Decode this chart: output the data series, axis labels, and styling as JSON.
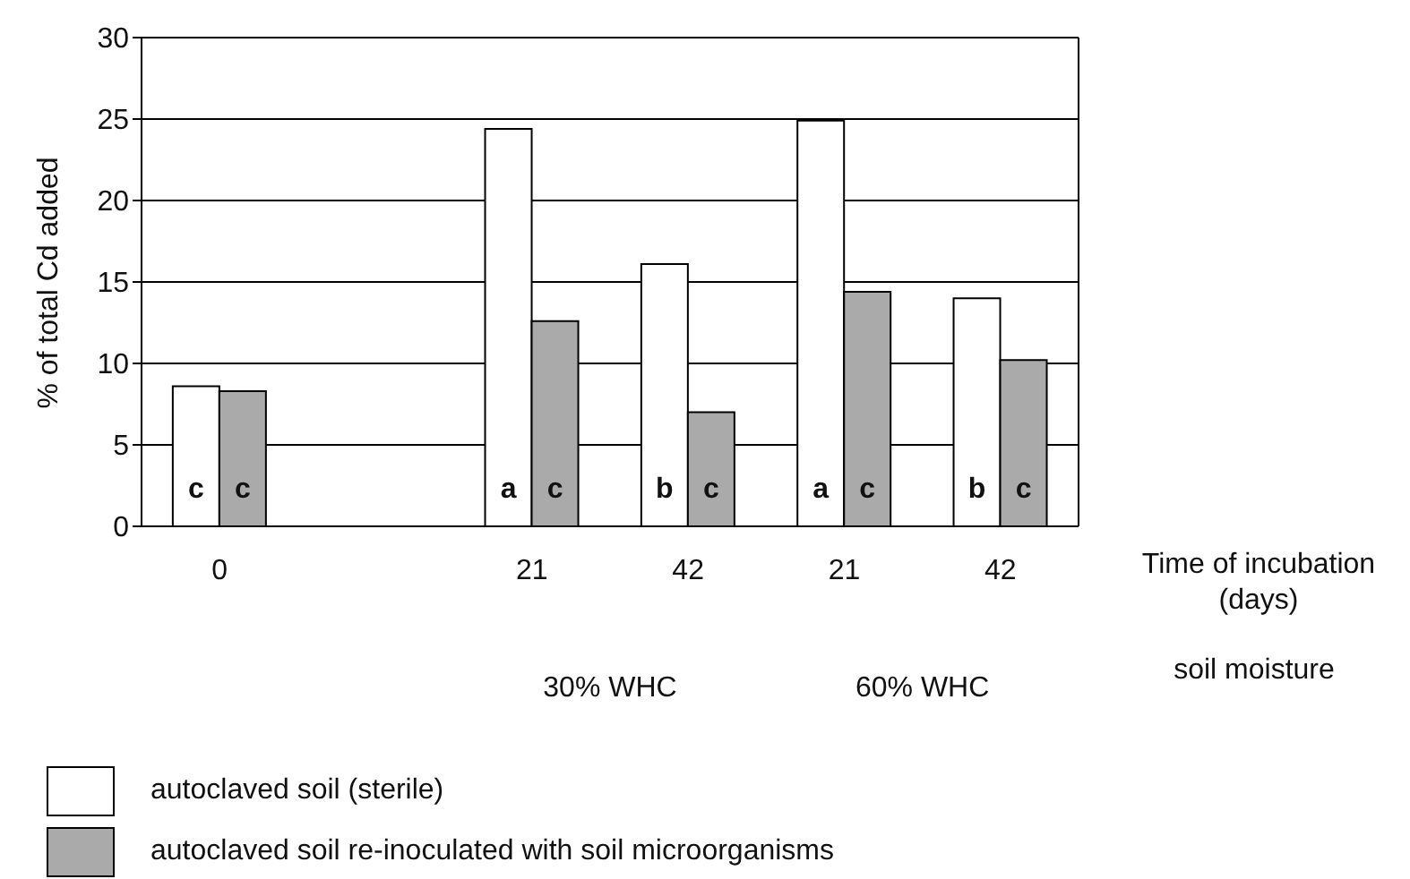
{
  "chart_data": {
    "type": "bar",
    "ylabel": "% of total Cd added",
    "xlabel": "Time of incubation (days)",
    "categories": [
      "0",
      null,
      "21",
      "42",
      "21",
      "42"
    ],
    "series": [
      {
        "name": "autoclaved soil (sterile)",
        "color": "#ffffff",
        "values": [
          8.6,
          null,
          24.4,
          16.1,
          24.9,
          14.0
        ],
        "value_labels": [
          "c",
          null,
          "a",
          "b",
          "a",
          "b"
        ]
      },
      {
        "name": "autoclaved soil re-inoculated with soil microorganisms",
        "color": "#aaaaaa",
        "values": [
          8.3,
          null,
          12.6,
          7.0,
          14.4,
          10.2
        ],
        "value_labels": [
          "c",
          null,
          "c",
          "c",
          "c",
          "c"
        ]
      }
    ],
    "annotations": [
      "30% WHC",
      "60% WHC",
      "soil moisture"
    ],
    "ylim": [
      0,
      30
    ],
    "yticks": [
      0,
      5,
      10,
      15,
      20,
      25,
      30
    ],
    "grid": "y",
    "legend": "bottom"
  }
}
